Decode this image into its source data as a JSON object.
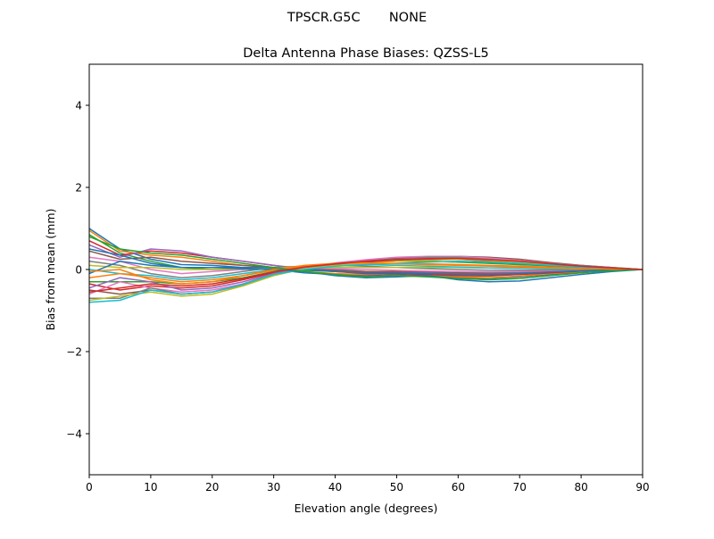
{
  "chart_data": {
    "type": "line",
    "suptitle": "TPSCR.G5C       NONE",
    "title": "Delta Antenna Phase Biases: QZSS-L5",
    "xlabel": "Elevation angle (degrees)",
    "ylabel": "Bias from mean (mm)",
    "xlim": [
      0,
      90
    ],
    "ylim": [
      -5,
      5
    ],
    "xticks": [
      0,
      10,
      20,
      30,
      40,
      50,
      60,
      70,
      80,
      90
    ],
    "yticks": [
      -4,
      -2,
      0,
      2,
      4
    ],
    "ytick_labels": [
      "−4",
      "−2",
      "0",
      "2",
      "4"
    ],
    "grid": false,
    "colors": [
      "#1f77b4",
      "#ff7f0e",
      "#2ca02c",
      "#d62728",
      "#9467bd",
      "#8c564b",
      "#e377c2",
      "#7f7f7f",
      "#bcbd22",
      "#17becf"
    ],
    "x": [
      0,
      5,
      10,
      15,
      20,
      25,
      30,
      35,
      40,
      45,
      50,
      55,
      60,
      65,
      70,
      75,
      80,
      85,
      90
    ],
    "series": [
      [
        1.0,
        0.5,
        0.25,
        0.12,
        0.1,
        0.05,
        0.0,
        -0.08,
        -0.12,
        -0.15,
        -0.12,
        -0.15,
        -0.2,
        -0.22,
        -0.18,
        -0.12,
        -0.06,
        -0.02,
        0
      ],
      [
        0.95,
        0.45,
        0.35,
        0.3,
        0.2,
        0.1,
        0.05,
        -0.05,
        -0.1,
        -0.12,
        -0.1,
        -0.12,
        -0.18,
        -0.2,
        -0.16,
        -0.1,
        -0.05,
        -0.02,
        0
      ],
      [
        0.85,
        0.4,
        0.2,
        0.05,
        0.0,
        0.0,
        0.02,
        -0.02,
        -0.05,
        -0.08,
        -0.08,
        -0.1,
        -0.15,
        -0.16,
        -0.12,
        -0.08,
        -0.04,
        -0.01,
        0
      ],
      [
        0.7,
        0.35,
        0.45,
        0.4,
        0.3,
        0.2,
        0.1,
        0.0,
        -0.05,
        -0.1,
        -0.1,
        -0.12,
        -0.15,
        -0.15,
        -0.12,
        -0.08,
        -0.04,
        -0.01,
        0
      ],
      [
        0.6,
        0.3,
        0.5,
        0.45,
        0.3,
        0.2,
        0.1,
        0.02,
        0.0,
        -0.05,
        -0.06,
        -0.08,
        -0.1,
        -0.1,
        -0.08,
        -0.05,
        -0.03,
        -0.01,
        0
      ],
      [
        0.45,
        0.25,
        0.3,
        0.2,
        0.15,
        0.1,
        0.05,
        0.0,
        -0.02,
        -0.05,
        -0.05,
        -0.06,
        -0.08,
        -0.08,
        -0.06,
        -0.04,
        -0.02,
        0,
        0
      ],
      [
        0.3,
        0.2,
        0.0,
        -0.1,
        -0.05,
        0.0,
        0.05,
        0.05,
        0.02,
        0.0,
        -0.02,
        -0.04,
        -0.05,
        -0.06,
        -0.05,
        -0.03,
        -0.02,
        0,
        0
      ],
      [
        0.2,
        0.1,
        -0.1,
        -0.2,
        -0.15,
        -0.05,
        0.05,
        0.08,
        0.1,
        0.08,
        0.05,
        0.02,
        0.0,
        -0.02,
        -0.02,
        -0.01,
        0,
        0,
        0
      ],
      [
        0.1,
        0.05,
        0.05,
        0.0,
        0.0,
        0.02,
        0.05,
        0.05,
        0.05,
        0.05,
        0.05,
        0.05,
        0.05,
        0.04,
        0.03,
        0.02,
        0.01,
        0,
        0
      ],
      [
        0.0,
        -0.1,
        -0.15,
        -0.25,
        -0.2,
        -0.1,
        0.0,
        0.08,
        0.12,
        0.12,
        0.1,
        0.08,
        0.06,
        0.04,
        0.03,
        0.02,
        0.01,
        0,
        0
      ],
      [
        -0.1,
        0.2,
        0.1,
        0.05,
        0.05,
        0.05,
        0.05,
        0.0,
        -0.05,
        -0.08,
        -0.08,
        -0.1,
        -0.12,
        -0.12,
        -0.1,
        -0.06,
        -0.03,
        -0.01,
        0
      ],
      [
        -0.2,
        -0.1,
        -0.2,
        -0.3,
        -0.25,
        -0.15,
        -0.02,
        0.08,
        0.12,
        0.15,
        0.15,
        0.14,
        0.12,
        0.1,
        0.08,
        0.06,
        0.04,
        0.02,
        0
      ],
      [
        -0.3,
        -0.3,
        -0.3,
        -0.35,
        -0.3,
        -0.2,
        -0.05,
        0.05,
        0.12,
        0.18,
        0.2,
        0.2,
        0.18,
        0.15,
        0.12,
        0.09,
        0.06,
        0.03,
        0
      ],
      [
        -0.35,
        -0.5,
        -0.4,
        -0.45,
        -0.4,
        -0.25,
        -0.08,
        0.05,
        0.12,
        0.18,
        0.22,
        0.25,
        0.25,
        0.2,
        0.15,
        0.1,
        0.06,
        0.03,
        0
      ],
      [
        -0.45,
        -0.2,
        -0.3,
        -0.5,
        -0.45,
        -0.3,
        -0.1,
        0.05,
        0.15,
        0.2,
        0.25,
        0.28,
        0.28,
        0.25,
        0.2,
        0.14,
        0.08,
        0.04,
        0
      ],
      [
        -0.5,
        -0.6,
        -0.5,
        -0.6,
        -0.55,
        -0.35,
        -0.12,
        0.03,
        0.15,
        0.22,
        0.28,
        0.3,
        0.32,
        0.3,
        0.25,
        0.17,
        0.1,
        0.05,
        0
      ],
      [
        -0.6,
        -0.3,
        -0.45,
        -0.55,
        -0.5,
        -0.35,
        -0.12,
        0.04,
        0.16,
        0.24,
        0.3,
        0.32,
        0.32,
        0.28,
        0.22,
        0.15,
        0.09,
        0.04,
        0
      ],
      [
        -0.7,
        -0.7,
        -0.45,
        -0.6,
        -0.55,
        -0.38,
        -0.12,
        0.05,
        0.15,
        0.2,
        0.25,
        0.3,
        0.3,
        0.25,
        0.2,
        0.15,
        0.1,
        0.05,
        0
      ],
      [
        -0.75,
        -0.65,
        -0.55,
        -0.65,
        -0.6,
        -0.4,
        -0.15,
        0.02,
        0.1,
        0.15,
        0.2,
        0.22,
        0.25,
        0.22,
        0.18,
        0.12,
        0.07,
        0.03,
        0
      ],
      [
        -0.8,
        -0.75,
        -0.5,
        -0.6,
        -0.55,
        -0.36,
        -0.12,
        0.0,
        0.08,
        0.12,
        0.15,
        0.18,
        0.2,
        0.18,
        0.15,
        0.1,
        0.06,
        0.03,
        0
      ],
      [
        0.5,
        0.35,
        0.15,
        0.05,
        0.05,
        0.02,
        0.0,
        -0.05,
        -0.15,
        -0.2,
        -0.18,
        -0.15,
        -0.25,
        -0.3,
        -0.28,
        -0.2,
        -0.12,
        -0.05,
        0
      ],
      [
        -0.05,
        0.0,
        -0.25,
        -0.35,
        -0.3,
        -0.15,
        0.0,
        0.1,
        0.15,
        0.16,
        0.14,
        0.12,
        0.1,
        0.08,
        0.06,
        0.04,
        0.02,
        0.01,
        0
      ],
      [
        0.8,
        0.5,
        0.4,
        0.35,
        0.25,
        0.15,
        0.05,
        -0.05,
        -0.12,
        -0.18,
        -0.15,
        -0.18,
        -0.22,
        -0.25,
        -0.22,
        -0.15,
        -0.08,
        -0.03,
        0
      ],
      [
        -0.55,
        -0.45,
        -0.35,
        -0.4,
        -0.35,
        -0.22,
        -0.06,
        0.06,
        0.14,
        0.2,
        0.24,
        0.26,
        0.27,
        0.24,
        0.2,
        0.14,
        0.08,
        0.04,
        0
      ]
    ]
  }
}
